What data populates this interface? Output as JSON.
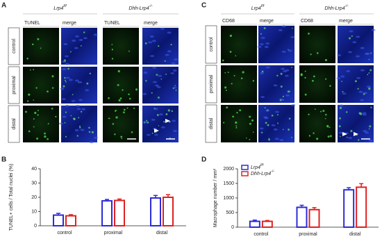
{
  "figure": {
    "panel_labels": [
      "A",
      "B",
      "C",
      "D"
    ],
    "image_grids": [
      {
        "genotypes": [
          {
            "base": "Lrp4",
            "sup": "f/f"
          },
          {
            "base": "Dhh-Lrp4",
            "sup": "-/-"
          }
        ],
        "columns": [
          "TUNEL",
          "merge",
          "TUNEL",
          "merge"
        ],
        "rows": [
          "control",
          "proximal",
          "distal"
        ]
      },
      {
        "genotypes": [
          {
            "base": "Lrp4",
            "sup": "f/f"
          },
          {
            "base": "Dhh-Lrp4",
            "sup": "-/-"
          }
        ],
        "columns": [
          "CD68",
          "merge",
          "CD68",
          "merge"
        ],
        "rows": [
          "control",
          "proximal",
          "distal"
        ]
      }
    ]
  },
  "chart_data": [
    {
      "type": "bar",
      "ylabel": "TUNEL+ cells / Total nuclei (%)",
      "categories": [
        "control",
        "proximal",
        "distal"
      ],
      "series": [
        {
          "name": "Lrp4",
          "superscript": "f/f",
          "color": "#2b2bd6",
          "values": [
            7.5,
            17.5,
            19.5
          ],
          "errors": [
            1.2,
            1.0,
            1.8
          ]
        },
        {
          "name": "Dhh-Lrp4",
          "superscript": "-/-",
          "color": "#e02020",
          "values": [
            7.0,
            17.8,
            20.0
          ],
          "errors": [
            0.8,
            1.0,
            1.8
          ]
        }
      ],
      "ylim": [
        0,
        40
      ],
      "yticks": [
        0,
        10,
        20,
        30,
        40
      ],
      "legend": false
    },
    {
      "type": "bar",
      "ylabel": "Macrophage number / mm²",
      "categories": [
        "control",
        "proximal",
        "distal"
      ],
      "series": [
        {
          "name": "Lrp4",
          "superscript": "f/f",
          "color": "#2b2bd6",
          "values": [
            200,
            680,
            1280
          ],
          "errors": [
            40,
            70,
            70
          ]
        },
        {
          "name": "Dhh-Lrp4",
          "superscript": "-/-",
          "color": "#e02020",
          "values": [
            200,
            600,
            1370
          ],
          "errors": [
            30,
            70,
            120
          ]
        }
      ],
      "ylim": [
        0,
        2000
      ],
      "yticks": [
        0,
        500,
        1000,
        1500,
        2000
      ],
      "legend": "upper left"
    }
  ]
}
